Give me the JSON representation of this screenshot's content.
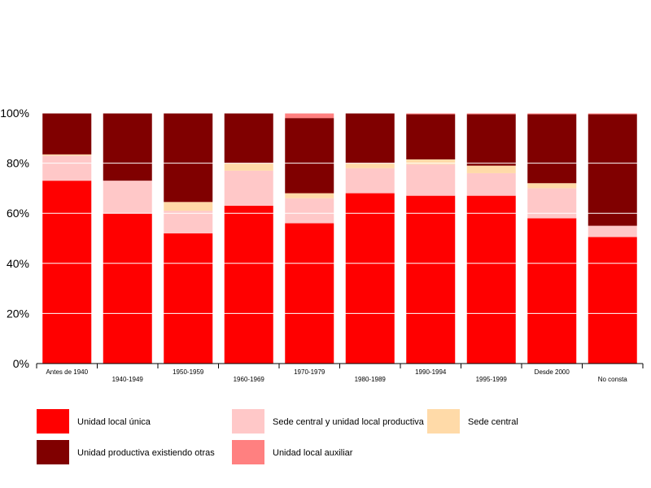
{
  "chart_data": {
    "type": "bar",
    "stacked": true,
    "normalized": true,
    "categories": [
      "Antes de 1940",
      "1940-1949",
      "1950-1959",
      "1960-1969",
      "1970-1979",
      "1980-1989",
      "1990-1994",
      "1995-1999",
      "Desde 2000",
      "No consta"
    ],
    "series": [
      {
        "name": "Unidad local única",
        "color": "#ff0000",
        "values": [
          73,
          60,
          52,
          63,
          56,
          68,
          67,
          67,
          58,
          50.5
        ]
      },
      {
        "name": "Sede central y unidad local productiva",
        "color": "#ffc8c8",
        "values": [
          10,
          13,
          9,
          14,
          10,
          10,
          12.5,
          9,
          12,
          4.5
        ]
      },
      {
        "name": "Sede central",
        "color": "#ffdaa8",
        "values": [
          0.5,
          0,
          3.5,
          3,
          2,
          2,
          2,
          3,
          2,
          0
        ]
      },
      {
        "name": "Unidad productiva existiendo otras",
        "color": "#800000",
        "values": [
          16.5,
          27,
          35.5,
          20,
          30,
          20,
          18,
          20.5,
          27.5,
          44.5
        ]
      },
      {
        "name": "Unidad local auxiliar",
        "color": "#ff8080",
        "values": [
          0,
          0,
          0,
          0,
          2,
          0,
          0.5,
          0.5,
          0.5,
          0.5
        ]
      }
    ],
    "yticks": [
      "0%",
      "20%",
      "40%",
      "60%",
      "80%",
      "100%"
    ],
    "ylim": [
      0,
      100
    ],
    "grid": true,
    "legend_position": "bottom"
  }
}
